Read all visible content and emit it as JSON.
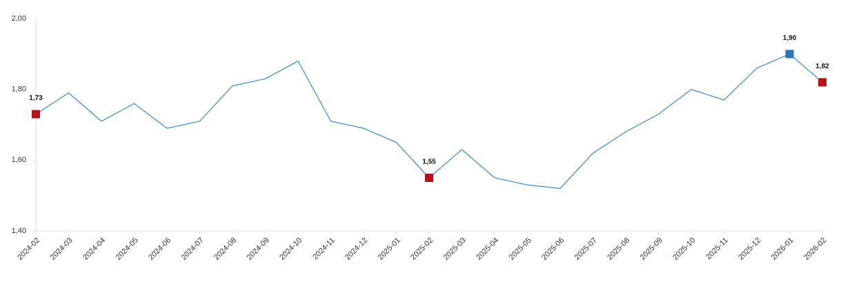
{
  "chart_data": {
    "type": "line",
    "categories": [
      "2024-02",
      "2024-03",
      "2024-04",
      "2024-05",
      "2024-06",
      "2024-07",
      "2024-08",
      "2024-09",
      "2024-10",
      "2024-11",
      "2024-12",
      "2025-01",
      "2025-02",
      "2025-03",
      "2025-04",
      "2025-05",
      "2025-06",
      "2025-07",
      "2025-08",
      "2025-09",
      "2025-10",
      "2025-11",
      "2025-12",
      "2026-01",
      "2026-02"
    ],
    "values": [
      1.73,
      1.79,
      1.71,
      1.76,
      1.69,
      1.71,
      1.81,
      1.83,
      1.88,
      1.71,
      1.69,
      1.65,
      1.55,
      1.63,
      1.55,
      1.53,
      1.52,
      1.62,
      1.68,
      1.73,
      1.8,
      1.77,
      1.86,
      1.9,
      1.82
    ],
    "value_labels": [
      "1,73",
      null,
      null,
      null,
      null,
      null,
      null,
      null,
      null,
      null,
      null,
      null,
      "1,55",
      null,
      null,
      null,
      null,
      null,
      null,
      null,
      null,
      null,
      null,
      "1,90",
      "1,82"
    ],
    "marker_colors": [
      "#b5121b",
      null,
      null,
      null,
      null,
      null,
      null,
      null,
      null,
      null,
      null,
      null,
      "#b5121b",
      null,
      null,
      null,
      null,
      null,
      null,
      null,
      null,
      null,
      null,
      "#2e75b6",
      "#b5121b"
    ],
    "color": "#3a87c8",
    "ylim": [
      1.4,
      2.0
    ],
    "yticks": [
      {
        "value": 1.4,
        "label": "1,40"
      },
      {
        "value": 1.6,
        "label": "1,60"
      },
      {
        "value": 1.8,
        "label": "1,80"
      },
      {
        "value": 2.0,
        "label": "2,00"
      }
    ],
    "grid": false
  }
}
